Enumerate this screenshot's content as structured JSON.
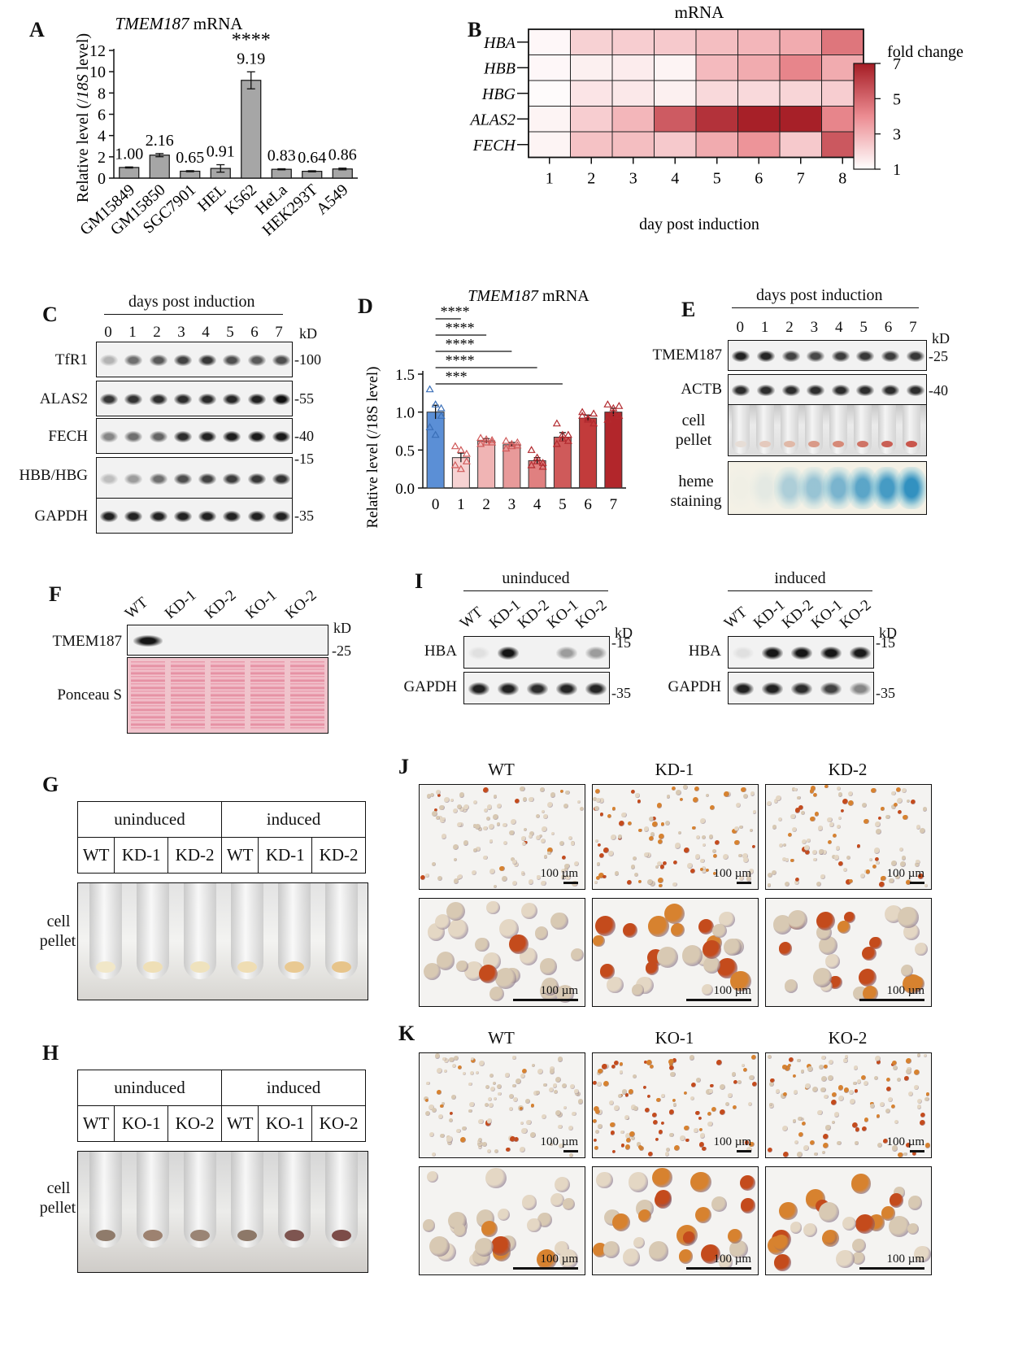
{
  "panels": {
    "A": {
      "label": "A",
      "chart_data": {
        "type": "bar",
        "title_gene": "TMEM187",
        "title_rest": " mRNA",
        "ylabel_pre": "Relative level (/",
        "ylabel_it": "18S",
        "ylabel_post": " level)",
        "ylim": [
          0,
          12
        ],
        "yticks": [
          0,
          2,
          4,
          6,
          8,
          10,
          12
        ],
        "categories": [
          "GM15849",
          "GM15850",
          "SGC7901",
          "HEL",
          "K562",
          "HeLa",
          "HEK293T",
          "A549"
        ],
        "values": [
          1.0,
          2.16,
          0.65,
          0.91,
          9.19,
          0.83,
          0.64,
          0.86
        ],
        "errors": [
          0.05,
          0.15,
          0.05,
          0.35,
          0.8,
          0.05,
          0.05,
          0.08
        ],
        "value_labels": [
          "1.00",
          "2.16",
          "0.65",
          "0.91",
          "9.19",
          "0.83",
          "0.64",
          "0.86"
        ],
        "significance": {
          "index": 4,
          "mark": "****"
        },
        "bar_color": "#a6a6a6"
      }
    },
    "B": {
      "label": "B",
      "chart_data": {
        "type": "heatmap",
        "title": "mRNA",
        "rows": [
          "HBA",
          "HBB",
          "HBG",
          "ALAS2",
          "FECH"
        ],
        "columns": [
          "1",
          "2",
          "3",
          "4",
          "5",
          "6",
          "7",
          "8"
        ],
        "xlabel": "day post induction",
        "values": [
          [
            1.2,
            2.2,
            2.3,
            2.4,
            2.7,
            2.9,
            3.2,
            4.6
          ],
          [
            1.2,
            1.4,
            1.5,
            1.3,
            2.8,
            3.2,
            4.2,
            3.2
          ],
          [
            1.1,
            1.7,
            1.6,
            1.4,
            2.0,
            2.0,
            2.1,
            2.3
          ],
          [
            1.3,
            2.3,
            2.9,
            5.3,
            6.4,
            6.9,
            6.9,
            4.2
          ],
          [
            1.3,
            2.6,
            2.7,
            2.4,
            3.2,
            3.8,
            2.4,
            5.4
          ]
        ],
        "colorbar": {
          "label": "fold change",
          "ticks": [
            "7",
            "5",
            "3",
            "1"
          ],
          "min": 1,
          "max": 7,
          "low_color": "#ffffff",
          "high_color": "#a51c24"
        }
      }
    },
    "C": {
      "label": "C",
      "header": "days post induction",
      "days": [
        "0",
        "1",
        "2",
        "3",
        "4",
        "5",
        "6",
        "7"
      ],
      "kd": "kD",
      "rows": [
        {
          "name": "TfR1",
          "marker": "100"
        },
        {
          "name": "ALAS2",
          "marker": "55"
        },
        {
          "name": "FECH",
          "marker": "40"
        },
        {
          "name": "HBB/HBG",
          "marker": "15"
        },
        {
          "name": "GAPDH",
          "marker": "35"
        }
      ]
    },
    "D": {
      "label": "D",
      "chart_data": {
        "type": "bar",
        "title_gene": "TMEM187",
        "title_rest": " mRNA",
        "ylabel": "Relative level (/18S level)",
        "ylim": [
          0,
          1.5
        ],
        "yticks": [
          "0.0",
          "0.5",
          "1.0",
          "1.5"
        ],
        "categories": [
          "0",
          "1",
          "2",
          "3",
          "4",
          "5",
          "6",
          "7"
        ],
        "values": [
          1.0,
          0.4,
          0.62,
          0.57,
          0.36,
          0.67,
          0.92,
          1.0
        ],
        "errors": [
          0.09,
          0.06,
          0.03,
          0.03,
          0.04,
          0.06,
          0.04,
          0.05
        ],
        "points": [
          [
            1.3,
            1.1,
            0.95,
            0.8,
            0.7,
            1.05
          ],
          [
            0.55,
            0.5,
            0.35,
            0.3,
            0.25,
            0.45
          ],
          [
            0.66,
            0.6,
            0.63,
            0.58,
            0.64,
            0.6
          ],
          [
            0.62,
            0.55,
            0.6,
            0.52,
            0.58,
            0.56
          ],
          [
            0.5,
            0.4,
            0.33,
            0.3,
            0.35,
            0.28
          ],
          [
            0.85,
            0.7,
            0.62,
            0.58,
            0.65,
            0.7
          ],
          [
            1.0,
            0.92,
            0.85,
            0.95,
            0.9,
            0.98
          ],
          [
            1.1,
            1.05,
            0.95,
            0.9,
            1.0,
            1.08
          ]
        ],
        "bar_colors": [
          "#5b8fd6",
          "#f6d2d2",
          "#f0b4b4",
          "#e89a9a",
          "#e08080",
          "#cf5a5a",
          "#c23b3b",
          "#b2262b"
        ],
        "significance": [
          {
            "from": 0,
            "to": 1,
            "mark": "****"
          },
          {
            "from": 0,
            "to": 2,
            "mark": "****"
          },
          {
            "from": 0,
            "to": 3,
            "mark": "****"
          },
          {
            "from": 0,
            "to": 4,
            "mark": "****"
          },
          {
            "from": 0,
            "to": 5,
            "mark": "***"
          }
        ]
      }
    },
    "E": {
      "label": "E",
      "header": "days post induction",
      "days": [
        "0",
        "1",
        "2",
        "3",
        "4",
        "5",
        "6",
        "7"
      ],
      "kd": "kD",
      "rows": [
        {
          "name": "TMEM187",
          "marker": "25"
        },
        {
          "name": "ACTB",
          "marker": "40"
        }
      ],
      "pellet_label": [
        "cell",
        "pellet"
      ],
      "heme_label": [
        "heme",
        "staining"
      ]
    },
    "F": {
      "label": "F",
      "lanes": [
        "WT",
        "KD-1",
        "KD-2",
        "KO-1",
        "KO-2"
      ],
      "kd": "kD",
      "rows": [
        {
          "name": "TMEM187",
          "marker": "25"
        }
      ],
      "stain_label": "Ponceau S"
    },
    "I": {
      "label": "I",
      "groups": [
        {
          "header": "uninduced",
          "lanes": [
            "WT",
            "KD-1",
            "KD-2",
            "KO-1",
            "KO-2"
          ]
        },
        {
          "header": "induced",
          "lanes": [
            "WT",
            "KD-1",
            "KD-2",
            "KO-1",
            "KO-2"
          ]
        }
      ],
      "kd": "kD",
      "rows": [
        {
          "name": "HBA",
          "marker": "15"
        },
        {
          "name": "GAPDH",
          "marker": "35"
        }
      ]
    },
    "G": {
      "label": "G",
      "groups": [
        "uninduced",
        "induced"
      ],
      "lanes": [
        "WT",
        "KD-1",
        "KD-2",
        "WT",
        "KD-1",
        "KD-2"
      ],
      "pellet_label": [
        "cell",
        "pellet"
      ]
    },
    "H": {
      "label": "H",
      "groups": [
        "uninduced",
        "induced"
      ],
      "lanes": [
        "WT",
        "KO-1",
        "KO-2",
        "WT",
        "KO-1",
        "KO-2"
      ],
      "pellet_label": [
        "cell",
        "pellet"
      ]
    },
    "J": {
      "label": "J",
      "columns": [
        "WT",
        "KD-1",
        "KD-2"
      ],
      "scale": "100 µm"
    },
    "K": {
      "label": "K",
      "columns": [
        "WT",
        "KO-1",
        "KO-2"
      ],
      "scale": "100 µm"
    }
  }
}
